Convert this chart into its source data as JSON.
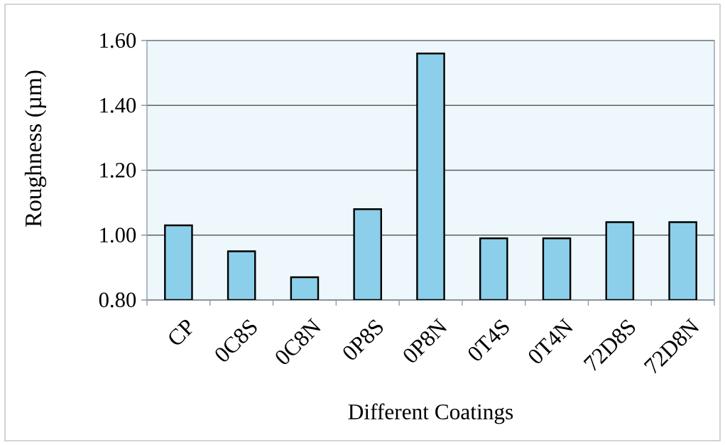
{
  "chart_data": {
    "type": "bar",
    "xlabel": "Different Coatings",
    "ylabel": "Roughness (µm)",
    "categories": [
      "CP",
      "0C8S",
      "0C8N",
      "0P8S",
      "0P8N",
      "0T4S",
      "0T4N",
      "72D8S",
      "72D8N"
    ],
    "values": [
      1.03,
      0.95,
      0.87,
      1.08,
      1.56,
      0.99,
      0.99,
      1.04,
      1.04
    ],
    "color": "#8ccfea",
    "ylim": [
      0.8,
      1.6
    ],
    "yticks": [
      {
        "value": 0.8,
        "label": "0.80"
      },
      {
        "value": 1.0,
        "label": "1.00"
      },
      {
        "value": 1.2,
        "label": "1.20"
      },
      {
        "value": 1.4,
        "label": "1.40"
      },
      {
        "value": 1.6,
        "label": "1.60"
      }
    ],
    "grid": "y"
  }
}
